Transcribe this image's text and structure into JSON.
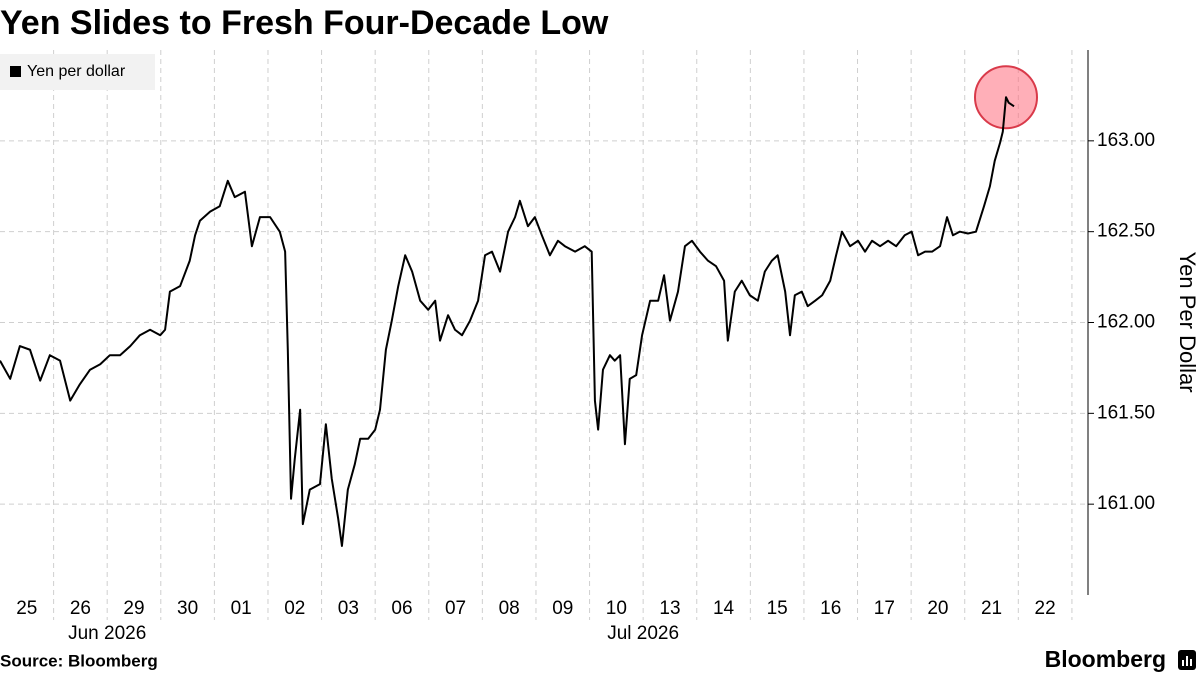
{
  "chart_data": {
    "type": "line",
    "title": "Yen Slides to Fresh Four-Decade Low",
    "y_axis_label": "Yen Per Dollar",
    "source": "Source: Bloomberg",
    "brand": "Bloomberg",
    "legend": "top-left",
    "grid": true,
    "xlim": [
      0,
      20.3
    ],
    "ylim": [
      160.5,
      163.5
    ],
    "xticks": [
      {
        "value": 0.5,
        "label": "25"
      },
      {
        "value": 1.5,
        "label": "26"
      },
      {
        "value": 2.5,
        "label": "29"
      },
      {
        "value": 3.5,
        "label": "30"
      },
      {
        "value": 4.5,
        "label": "01"
      },
      {
        "value": 5.5,
        "label": "02"
      },
      {
        "value": 6.5,
        "label": "03"
      },
      {
        "value": 7.5,
        "label": "06"
      },
      {
        "value": 8.5,
        "label": "07"
      },
      {
        "value": 9.5,
        "label": "08"
      },
      {
        "value": 10.5,
        "label": "09"
      },
      {
        "value": 11.5,
        "label": "10"
      },
      {
        "value": 12.5,
        "label": "13"
      },
      {
        "value": 13.5,
        "label": "14"
      },
      {
        "value": 14.5,
        "label": "15"
      },
      {
        "value": 15.5,
        "label": "16"
      },
      {
        "value": 16.5,
        "label": "17"
      },
      {
        "value": 17.5,
        "label": "20"
      },
      {
        "value": 18.5,
        "label": "21"
      },
      {
        "value": 19.5,
        "label": "22"
      }
    ],
    "xticks_secondary": [
      {
        "value": 2.0,
        "label": "Jun 2026"
      },
      {
        "value": 12.0,
        "label": "Jul 2026"
      }
    ],
    "yticks": [
      {
        "value": 161,
        "label": "161.00"
      },
      {
        "value": 161.5,
        "label": "161.50"
      },
      {
        "value": 162,
        "label": "162.00"
      },
      {
        "value": 162.5,
        "label": "162.50"
      },
      {
        "value": 163,
        "label": "163.00"
      }
    ],
    "x": [
      0,
      0.19,
      0.37,
      0.56,
      0.75,
      0.93,
      1.12,
      1.31,
      1.49,
      1.68,
      1.87,
      2.05,
      2.24,
      2.43,
      2.61,
      2.8,
      2.99,
      3.08,
      3.17,
      3.36,
      3.54,
      3.64,
      3.73,
      3.92,
      4.1,
      4.25,
      4.38,
      4.57,
      4.7,
      4.85,
      5.04,
      5.22,
      5.32,
      5.37,
      5.43,
      5.5,
      5.6,
      5.65,
      5.78,
      5.97,
      6.08,
      6.19,
      6.31,
      6.38,
      6.49,
      6.62,
      6.72,
      6.87,
      7.0,
      7.09,
      7.2,
      7.31,
      7.43,
      7.56,
      7.69,
      7.84,
      7.99,
      8.12,
      8.21,
      8.36,
      8.49,
      8.62,
      8.77,
      8.92,
      9.05,
      9.18,
      9.33,
      9.48,
      9.61,
      9.7,
      9.85,
      9.98,
      10.11,
      10.26,
      10.41,
      10.54,
      10.73,
      10.91,
      11.04,
      11.1,
      11.16,
      11.25,
      11.38,
      11.47,
      11.57,
      11.66,
      11.75,
      11.87,
      11.98,
      12.13,
      12.28,
      12.39,
      12.5,
      12.65,
      12.78,
      12.91,
      13.06,
      13.21,
      13.36,
      13.51,
      13.58,
      13.71,
      13.84,
      13.99,
      14.14,
      14.27,
      14.4,
      14.51,
      14.65,
      14.74,
      14.83,
      14.96,
      15.07,
      15.21,
      15.34,
      15.49,
      15.6,
      15.71,
      15.86,
      16.01,
      16.14,
      16.27,
      16.42,
      16.57,
      16.72,
      16.88,
      17.01,
      17.13,
      17.26,
      17.39,
      17.54,
      17.67,
      17.78,
      17.91,
      18.06,
      18.21,
      18.36,
      18.47,
      18.56,
      18.66,
      18.71,
      18.77,
      18.82,
      18.92
    ],
    "series": [
      {
        "name": "Yen per dollar",
        "color": "#000000",
        "values": [
          161.79,
          161.69,
          161.87,
          161.85,
          161.68,
          161.82,
          161.79,
          161.57,
          161.66,
          161.74,
          161.77,
          161.82,
          161.82,
          161.87,
          161.93,
          161.96,
          161.93,
          161.96,
          162.17,
          162.2,
          162.34,
          162.48,
          162.56,
          162.61,
          162.64,
          162.78,
          162.69,
          162.72,
          162.42,
          162.58,
          162.58,
          162.5,
          162.39,
          161.85,
          161.03,
          161.25,
          161.52,
          160.89,
          161.08,
          161.11,
          161.44,
          161.14,
          160.92,
          160.77,
          161.08,
          161.22,
          161.36,
          161.36,
          161.41,
          161.52,
          161.85,
          162.01,
          162.2,
          162.37,
          162.28,
          162.12,
          162.07,
          162.12,
          161.9,
          162.04,
          161.96,
          161.93,
          162.01,
          162.12,
          162.37,
          162.39,
          162.28,
          162.5,
          162.58,
          162.67,
          162.53,
          162.58,
          162.48,
          162.37,
          162.45,
          162.42,
          162.39,
          162.42,
          162.39,
          161.57,
          161.41,
          161.74,
          161.82,
          161.79,
          161.82,
          161.33,
          161.69,
          161.71,
          161.93,
          162.12,
          162.12,
          162.26,
          162.01,
          162.17,
          162.42,
          162.45,
          162.39,
          162.34,
          162.31,
          162.23,
          161.9,
          162.17,
          162.23,
          162.15,
          162.12,
          162.28,
          162.34,
          162.37,
          162.17,
          161.93,
          162.15,
          162.17,
          162.09,
          162.12,
          162.15,
          162.23,
          162.37,
          162.5,
          162.42,
          162.45,
          162.39,
          162.45,
          162.42,
          162.45,
          162.42,
          162.48,
          162.5,
          162.37,
          162.39,
          162.39,
          162.42,
          162.58,
          162.48,
          162.5,
          162.49,
          162.5,
          162.64,
          162.75,
          162.89,
          162.99,
          163.05,
          163.24,
          163.21,
          163.19
        ]
      }
    ]
  }
}
